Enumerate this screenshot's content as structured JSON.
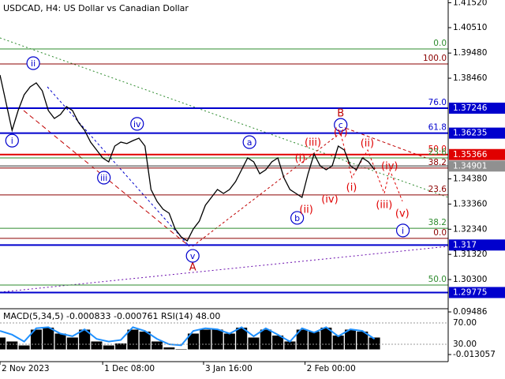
{
  "chart_data": {
    "type": "line",
    "title": "USDCAD, H4:  US Dollar vs Canadian Dollar",
    "xlim": [
      0,
      74.2
    ],
    "xticks": [
      {
        "value": 0,
        "label": "2 Nov 2023"
      },
      {
        "value": 17,
        "label": "1 Dec 08:00"
      },
      {
        "value": 33.7,
        "label": "3 Jan 16:00"
      },
      {
        "value": 50.5,
        "label": "2 Feb 00:00"
      }
    ],
    "ylim": [
      1.2915,
      1.4163
    ],
    "yticks": [
      {
        "value": 1.4152,
        "label": "1.41520"
      },
      {
        "value": 1.4051,
        "label": "1.40510"
      },
      {
        "value": 1.3948,
        "label": "1.39480"
      },
      {
        "value": 1.3846,
        "label": "1.38460"
      },
      {
        "value": 1.3438,
        "label": "1.34380"
      },
      {
        "value": 1.3336,
        "label": "1.33360"
      },
      {
        "value": 1.3234,
        "label": "1.32340"
      },
      {
        "value": 1.3132,
        "label": "1.31320"
      },
      {
        "value": 1.303,
        "label": "1.30300"
      }
    ],
    "series": [
      {
        "name": "USDCAD",
        "color": "#000000",
        "values": [
          1.3859,
          1.3747,
          1.3635,
          1.3715,
          1.3779,
          1.3811,
          1.3827,
          1.3795,
          1.3715,
          1.3683,
          1.3699,
          1.3731,
          1.3715,
          1.3667,
          1.3635,
          1.3587,
          1.3555,
          1.3523,
          1.3507,
          1.3571,
          1.3587,
          1.3581,
          1.3593,
          1.3603,
          1.3571,
          1.3395,
          1.3347,
          1.3315,
          1.3299,
          1.3235,
          1.3203,
          1.3187,
          1.3235,
          1.3267,
          1.3331,
          1.3363,
          1.3395,
          1.3379,
          1.3395,
          1.3427,
          1.3475,
          1.3523,
          1.3507,
          1.3459,
          1.3475,
          1.3507,
          1.3523,
          1.3443,
          1.3395,
          1.3379,
          1.3363,
          1.3459,
          1.3539,
          1.3491,
          1.3475,
          1.3491,
          1.3571,
          1.3555,
          1.3491,
          1.3475,
          1.3523,
          1.3507,
          1.3475
        ]
      }
    ],
    "levels": [
      {
        "label": "0.0",
        "price": 1.39646,
        "color": "#2e8b2e"
      },
      {
        "label": "100.0",
        "price": 1.39038,
        "color": "#8b0000"
      },
      {
        "label": "76.0",
        "price": 1.37246,
        "color": "#0000cd",
        "box": true
      },
      {
        "label": "61.8",
        "price": 1.36235,
        "color": "#0000cd",
        "box": true
      },
      {
        "label": "50.0",
        "price": 1.35366,
        "color": "#e00000",
        "box": true
      },
      {
        "label": "23.6",
        "price": 1.3523,
        "color": "#2e8b2e"
      },
      {
        "price": 1.34901,
        "color": "#909090",
        "box": true
      },
      {
        "label": "38.2",
        "price": 1.3482,
        "color": "#8b0000"
      },
      {
        "label": "23.6",
        "price": 1.3373,
        "color": "#8b0000"
      },
      {
        "label": "38.2",
        "price": 1.3238,
        "color": "#2e8b2e"
      },
      {
        "label": "0.0",
        "price": 1.3197,
        "color": "#8b0000"
      },
      {
        "price": 1.317,
        "color": "#0000cd",
        "box": true
      },
      {
        "label": "50.0",
        "price": 1.3008,
        "color": "#2e8b2e"
      },
      {
        "price": 1.29775,
        "color": "#0000cd",
        "box": true
      }
    ],
    "annotations": [
      {
        "text": "i",
        "x": 2.0,
        "price": 1.3593,
        "color": "#0000cd",
        "circled": true
      },
      {
        "text": "ii",
        "x": 5.5,
        "price": 1.3907,
        "color": "#0000cd",
        "circled": true
      },
      {
        "text": "iii",
        "x": 17.2,
        "price": 1.3443,
        "color": "#0000cd",
        "circled": true
      },
      {
        "text": "iv",
        "x": 22.7,
        "price": 1.3661,
        "color": "#0000cd",
        "circled": true
      },
      {
        "text": "v",
        "x": 31.9,
        "price": 1.3126,
        "color": "#0000cd",
        "circled": true
      },
      {
        "text": "a",
        "x": 41.3,
        "price": 1.3587,
        "color": "#0000cd",
        "circled": true
      },
      {
        "text": "b",
        "x": 49.2,
        "price": 1.328,
        "color": "#0000cd",
        "circled": true
      },
      {
        "text": "c",
        "x": 56.4,
        "price": 1.3657,
        "color": "#0000cd",
        "circled": true
      },
      {
        "text": "i",
        "x": 66.7,
        "price": 1.3229,
        "color": "#0000cd",
        "circled": true
      },
      {
        "text": "A",
        "x": 31.9,
        "price": 1.3082,
        "color": "#c00000",
        "circled": false
      },
      {
        "text": "B",
        "x": 56.4,
        "price": 1.3705,
        "color": "#c00000",
        "circled": false
      },
      {
        "text": "(i)",
        "x": 49.7,
        "price": 1.3523,
        "color": "#e00000",
        "circled": false
      },
      {
        "text": "(ii)",
        "x": 50.7,
        "price": 1.3315,
        "color": "#e00000",
        "circled": false
      },
      {
        "text": "(iii)",
        "x": 51.8,
        "price": 1.3587,
        "color": "#e00000",
        "circled": false
      },
      {
        "text": "(iv)",
        "x": 54.6,
        "price": 1.3357,
        "color": "#e00000",
        "circled": false
      },
      {
        "text": "(v)",
        "x": 56.4,
        "price": 1.3629,
        "color": "#e00000",
        "circled": false
      },
      {
        "text": "(i)",
        "x": 58.2,
        "price": 1.3405,
        "color": "#e00000",
        "circled": false
      },
      {
        "text": "(ii)",
        "x": 60.8,
        "price": 1.3584,
        "color": "#e00000",
        "circled": false
      },
      {
        "text": "(iii)",
        "x": 63.6,
        "price": 1.3334,
        "color": "#e00000",
        "circled": false
      },
      {
        "text": "(iv)",
        "x": 64.5,
        "price": 1.3491,
        "color": "#e00000",
        "circled": false
      },
      {
        "text": "(v)",
        "x": 66.6,
        "price": 1.3299,
        "color": "#e00000",
        "circled": false
      }
    ],
    "indicator_label": "MACD(5,34,5) -0.000833 -0.000761 RSI(14) 48.00",
    "rsi_ylim": [
      -2.6,
      93.7
    ],
    "rsi_ticks": [
      {
        "value": 70,
        "label": "70.00"
      },
      {
        "value": 30,
        "label": "30.00"
      }
    ],
    "rsi_color": "#1e90ff",
    "rsi": [
      55,
      48,
      35,
      60,
      62,
      50,
      45,
      58,
      40,
      35,
      38,
      62,
      55,
      40,
      30,
      28,
      55,
      60,
      58,
      50,
      62,
      45,
      60,
      48,
      35,
      60,
      52,
      62,
      45,
      58,
      55,
      40
    ],
    "macd_ylim": [
      -0.031,
      0.0989
    ],
    "macd_ticks": [
      0.09486,
      -0.013057
    ],
    "macd": [
      0.03,
      0.02,
      0.01,
      0.05,
      0.055,
      0.04,
      0.03,
      0.05,
      0.02,
      0.01,
      0.015,
      0.05,
      0.045,
      0.02,
      0.005,
      0.0,
      0.04,
      0.05,
      0.05,
      0.04,
      0.055,
      0.03,
      0.05,
      0.035,
      0.02,
      0.05,
      0.045,
      0.055,
      0.035,
      0.05,
      0.045,
      0.03
    ]
  }
}
